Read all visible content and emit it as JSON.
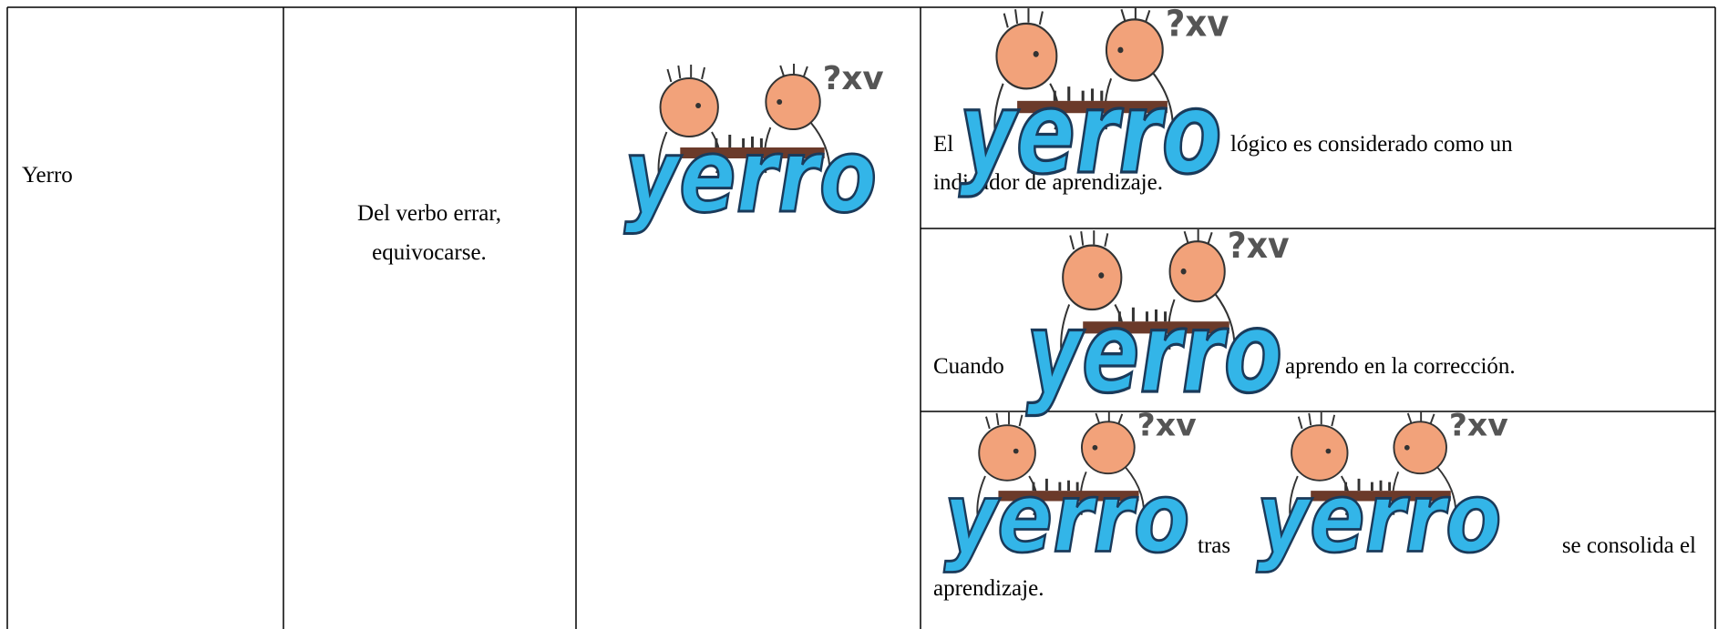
{
  "logo": {
    "word": "yerro",
    "marks": "?xv"
  },
  "table": {
    "term": "Yerro",
    "definition": [
      "Del verbo errar,",
      "equivocarse."
    ],
    "examples": [
      {
        "before": "El",
        "after": [
          "lógico es considerado como un",
          "indicador de aprendizaje."
        ]
      },
      {
        "before": "Cuando",
        "after": [
          "aprendo en la corrección."
        ]
      },
      {
        "middle": "tras",
        "after": [
          "se consolida el",
          "aprendizaje."
        ]
      }
    ]
  }
}
